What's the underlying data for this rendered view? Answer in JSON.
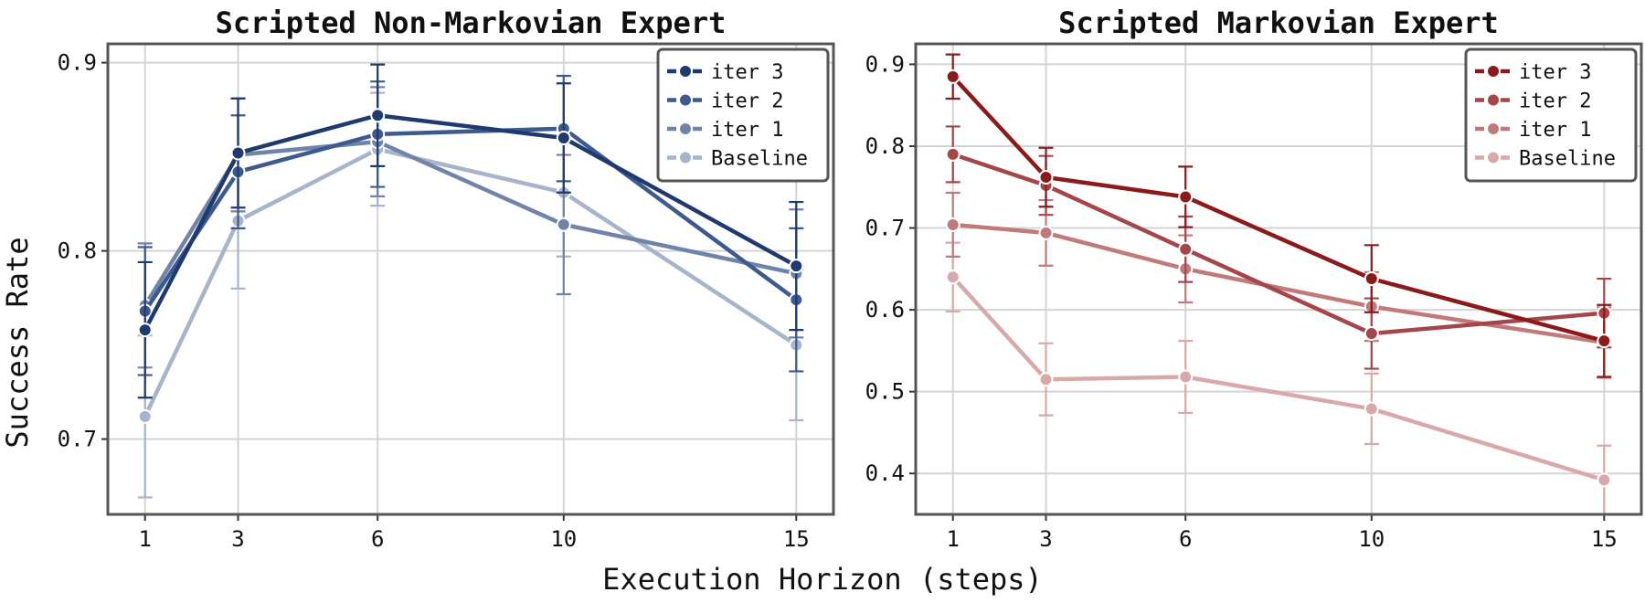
{
  "colors": {
    "blue": [
      "#1f3a6e",
      "#3d5a8e",
      "#7083a8",
      "#a6b4cc"
    ],
    "red": [
      "#8b1a1a",
      "#a5464a",
      "#c07a7a",
      "#d9a9a9"
    ]
  },
  "xlabel": "Execution Horizon (steps)",
  "ylabel": "Success Rate",
  "chart_data": [
    {
      "type": "line",
      "title": "Scripted Non-Markovian Expert",
      "x": [
        1,
        3,
        6,
        10,
        15
      ],
      "xticks": [
        "1",
        "3",
        "6",
        "10",
        "15"
      ],
      "xlim": [
        0.2,
        15.8
      ],
      "ylim": [
        0.66,
        0.91
      ],
      "yticks": [
        0.7,
        0.8,
        0.9
      ],
      "ytick_labels": [
        "0.7",
        "0.8",
        "0.9"
      ],
      "grid": true,
      "legend": "top-right",
      "series": [
        {
          "name": "iter 3",
          "values": [
            0.758,
            0.852,
            0.872,
            0.86,
            0.792
          ],
          "err": [
            0.036,
            0.029,
            0.027,
            0.029,
            0.034
          ]
        },
        {
          "name": "iter 2",
          "values": [
            0.768,
            0.842,
            0.862,
            0.865,
            0.774
          ],
          "err": [
            0.034,
            0.03,
            0.028,
            0.028,
            0.038
          ]
        },
        {
          "name": "iter 1",
          "values": [
            0.771,
            0.851,
            0.858,
            0.814,
            0.788
          ],
          "err": [
            0.033,
            0.03,
            0.029,
            0.037,
            0.034
          ]
        },
        {
          "name": "Baseline",
          "values": [
            0.712,
            0.816,
            0.854,
            0.831,
            0.75
          ],
          "err": [
            0.043,
            0.036,
            0.03,
            0.034,
            0.04
          ]
        }
      ]
    },
    {
      "type": "line",
      "title": "Scripted Markovian Expert",
      "x": [
        1,
        3,
        6,
        10,
        15
      ],
      "xticks": [
        "1",
        "3",
        "6",
        "10",
        "15"
      ],
      "xlim": [
        0.2,
        15.8
      ],
      "ylim": [
        0.35,
        0.925
      ],
      "yticks": [
        0.4,
        0.5,
        0.6,
        0.7,
        0.8,
        0.9
      ],
      "ytick_labels": [
        "0.4",
        "0.5",
        "0.6",
        "0.7",
        "0.8",
        "0.9"
      ],
      "grid": true,
      "legend": "top-right",
      "series": [
        {
          "name": "iter 3",
          "values": [
            0.885,
            0.762,
            0.738,
            0.638,
            0.562
          ],
          "err": [
            0.027,
            0.036,
            0.037,
            0.041,
            0.044
          ]
        },
        {
          "name": "iter 2",
          "values": [
            0.79,
            0.752,
            0.674,
            0.571,
            0.596
          ],
          "err": [
            0.034,
            0.036,
            0.04,
            0.043,
            0.042
          ]
        },
        {
          "name": "iter 1",
          "values": [
            0.704,
            0.694,
            0.65,
            0.604,
            0.56
          ],
          "err": [
            0.039,
            0.04,
            0.041,
            0.042,
            0.043
          ]
        },
        {
          "name": "Baseline",
          "values": [
            0.64,
            0.515,
            0.518,
            0.479,
            0.392
          ],
          "err": [
            0.042,
            0.044,
            0.044,
            0.043,
            0.042
          ]
        }
      ]
    }
  ]
}
